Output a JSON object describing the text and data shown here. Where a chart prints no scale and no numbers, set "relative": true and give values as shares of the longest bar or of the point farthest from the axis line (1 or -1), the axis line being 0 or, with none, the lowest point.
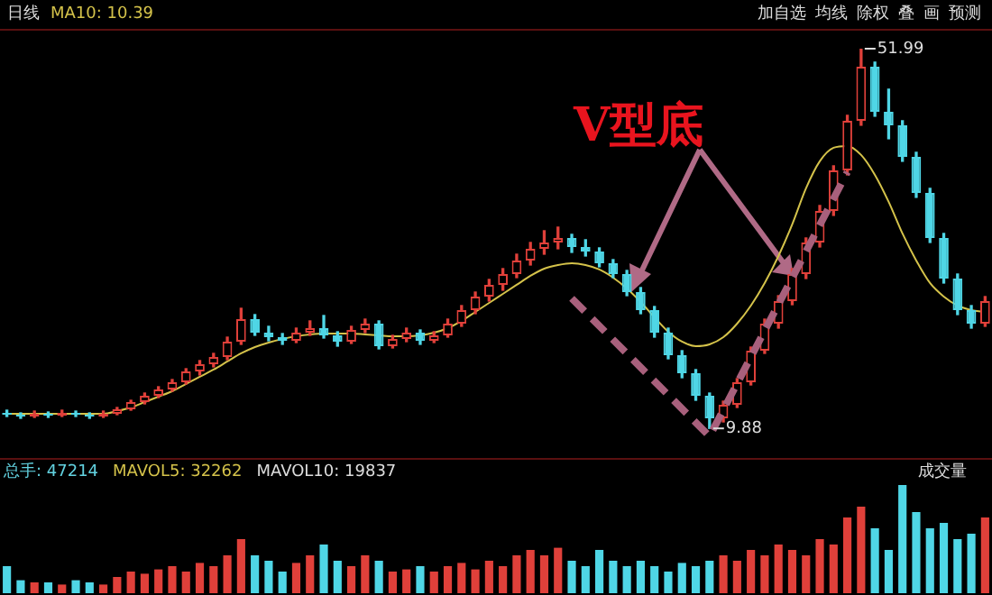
{
  "chart_data": [
    {
      "type": "candlestick",
      "tick_labels": false,
      "legend": "top left",
      "categories": [
        null,
        null,
        null,
        null,
        null,
        null,
        null,
        null,
        null,
        null,
        null,
        null,
        null,
        null,
        null,
        null,
        null,
        null,
        null,
        null,
        null,
        null,
        null,
        null,
        null,
        null,
        null,
        null,
        null,
        null,
        null,
        null,
        null,
        null,
        null,
        null,
        null,
        null,
        null,
        null,
        null,
        null,
        null,
        null,
        null,
        null,
        null,
        null,
        null,
        null,
        null,
        null,
        null,
        null,
        null,
        null,
        null,
        null,
        null,
        null,
        null,
        null,
        null,
        null,
        null,
        null,
        null,
        null,
        null,
        null,
        null,
        null
      ],
      "ohlc": [
        [
          11.6,
          11.9,
          11.2,
          11.4
        ],
        [
          11.4,
          11.6,
          11.0,
          11.2
        ],
        [
          11.2,
          11.8,
          11.1,
          11.5
        ],
        [
          11.5,
          11.7,
          11.1,
          11.3
        ],
        [
          11.3,
          11.9,
          11.2,
          11.6
        ],
        [
          11.6,
          11.8,
          11.2,
          11.4
        ],
        [
          11.4,
          11.6,
          11.0,
          11.2
        ],
        [
          11.2,
          11.8,
          11.1,
          11.5
        ],
        [
          11.5,
          12.2,
          11.4,
          12.0
        ],
        [
          12.0,
          13.0,
          11.9,
          12.8
        ],
        [
          12.8,
          13.8,
          12.6,
          13.5
        ],
        [
          13.5,
          14.5,
          13.3,
          14.2
        ],
        [
          14.2,
          15.3,
          14.0,
          15.0
        ],
        [
          15.0,
          16.5,
          14.8,
          16.2
        ],
        [
          16.2,
          17.4,
          15.8,
          17.0
        ],
        [
          17.0,
          18.2,
          16.7,
          17.8
        ],
        [
          17.8,
          20.0,
          17.5,
          19.5
        ],
        [
          19.5,
          23.2,
          19.2,
          22.0
        ],
        [
          22.0,
          22.5,
          20.2,
          20.5
        ],
        [
          20.5,
          21.2,
          19.6,
          20.0
        ],
        [
          20.0,
          20.4,
          19.2,
          19.6
        ],
        [
          19.6,
          21.0,
          19.4,
          20.5
        ],
        [
          20.5,
          21.8,
          20.2,
          21.0
        ],
        [
          21.0,
          22.4,
          19.9,
          20.2
        ],
        [
          20.2,
          20.6,
          19.0,
          19.5
        ],
        [
          19.5,
          21.2,
          19.3,
          20.8
        ],
        [
          20.8,
          22.0,
          20.5,
          21.5
        ],
        [
          21.5,
          21.8,
          18.7,
          19.0
        ],
        [
          19.0,
          20.2,
          18.8,
          19.8
        ],
        [
          19.8,
          21.0,
          19.5,
          20.5
        ],
        [
          20.5,
          20.8,
          19.2,
          19.6
        ],
        [
          19.6,
          20.6,
          19.4,
          20.2
        ],
        [
          20.2,
          22.0,
          20.0,
          21.5
        ],
        [
          21.5,
          23.5,
          21.2,
          23.0
        ],
        [
          23.0,
          25.0,
          22.6,
          24.5
        ],
        [
          24.5,
          26.4,
          24.0,
          25.8
        ],
        [
          25.8,
          27.6,
          25.2,
          27.0
        ],
        [
          27.0,
          29.2,
          26.6,
          28.5
        ],
        [
          28.5,
          30.5,
          28.0,
          29.8
        ],
        [
          29.8,
          31.8,
          29.2,
          30.5
        ],
        [
          30.5,
          32.2,
          29.8,
          31.0
        ],
        [
          31.0,
          31.4,
          29.4,
          30.0
        ],
        [
          30.0,
          30.8,
          29.0,
          29.5
        ],
        [
          29.5,
          29.9,
          27.8,
          28.2
        ],
        [
          28.2,
          28.6,
          26.6,
          27.0
        ],
        [
          27.0,
          27.4,
          24.6,
          25.0
        ],
        [
          25.0,
          25.5,
          22.6,
          23.0
        ],
        [
          23.0,
          23.4,
          20.0,
          20.5
        ],
        [
          20.5,
          21.0,
          17.6,
          18.0
        ],
        [
          18.0,
          18.5,
          15.5,
          16.0
        ],
        [
          16.0,
          16.4,
          13.0,
          13.5
        ],
        [
          13.5,
          13.8,
          9.88,
          11.0
        ],
        [
          11.0,
          12.9,
          10.6,
          12.5
        ],
        [
          12.5,
          15.4,
          12.2,
          15.0
        ],
        [
          15.0,
          18.9,
          14.7,
          18.5
        ],
        [
          18.5,
          22.0,
          18.2,
          21.5
        ],
        [
          21.5,
          24.6,
          21.0,
          24.0
        ],
        [
          24.0,
          27.6,
          23.6,
          27.0
        ],
        [
          27.0,
          31.0,
          26.5,
          30.5
        ],
        [
          30.5,
          34.6,
          30.0,
          34.0
        ],
        [
          34.0,
          39.0,
          33.5,
          38.5
        ],
        [
          38.5,
          44.6,
          38.0,
          44.0
        ],
        [
          44.0,
          51.99,
          43.5,
          50.0
        ],
        [
          50.0,
          50.5,
          44.5,
          45.0
        ],
        [
          45.0,
          47.5,
          42.0,
          43.5
        ],
        [
          43.5,
          44.0,
          39.5,
          40.0
        ],
        [
          40.0,
          40.5,
          35.5,
          36.0
        ],
        [
          36.0,
          36.5,
          30.5,
          31.0
        ],
        [
          31.0,
          31.5,
          26.0,
          26.5
        ],
        [
          26.5,
          27.0,
          22.5,
          23.0
        ],
        [
          23.0,
          23.5,
          21.0,
          21.5
        ],
        [
          21.5,
          24.5,
          21.2,
          24.0
        ]
      ],
      "colors": [
        "#4fd6e6",
        "#4fd6e6",
        "#e0403a",
        "#4fd6e6",
        "#e0403a",
        "#4fd6e6",
        "#4fd6e6",
        "#e0403a",
        "#e0403a",
        "#e0403a",
        "#e0403a",
        "#e0403a",
        "#e0403a",
        "#e0403a",
        "#e0403a",
        "#e0403a",
        "#e0403a",
        "#e0403a",
        "#4fd6e6",
        "#4fd6e6",
        "#4fd6e6",
        "#e0403a",
        "#e0403a",
        "#4fd6e6",
        "#4fd6e6",
        "#e0403a",
        "#e0403a",
        "#4fd6e6",
        "#e0403a",
        "#e0403a",
        "#4fd6e6",
        "#e0403a",
        "#e0403a",
        "#e0403a",
        "#e0403a",
        "#e0403a",
        "#e0403a",
        "#e0403a",
        "#e0403a",
        "#e0403a",
        "#e0403a",
        "#4fd6e6",
        "#4fd6e6",
        "#4fd6e6",
        "#4fd6e6",
        "#4fd6e6",
        "#4fd6e6",
        "#4fd6e6",
        "#4fd6e6",
        "#4fd6e6",
        "#4fd6e6",
        "#4fd6e6",
        "#e0403a",
        "#e0403a",
        "#e0403a",
        "#e0403a",
        "#e0403a",
        "#e0403a",
        "#e0403a",
        "#e0403a",
        "#e0403a",
        "#e0403a",
        "#e0403a",
        "#4fd6e6",
        "#4fd6e6",
        "#4fd6e6",
        "#4fd6e6",
        "#4fd6e6",
        "#4fd6e6",
        "#4fd6e6",
        "#4fd6e6",
        "#e0403a"
      ],
      "series": [
        {
          "type": "line",
          "name": "MA10: 10.39",
          "color": "#d4c24a",
          "values": [
            11.5,
            11.5,
            11.5,
            11.5,
            11.5,
            11.5,
            11.5,
            11.5,
            11.8,
            12.2,
            12.8,
            13.4,
            14.0,
            14.8,
            15.6,
            16.4,
            17.3,
            18.2,
            18.9,
            19.4,
            19.8,
            20.1,
            20.3,
            20.4,
            20.4,
            20.4,
            20.3,
            20.2,
            20.1,
            20.1,
            20.2,
            20.5,
            21.0,
            21.8,
            22.8,
            23.8,
            24.8,
            25.8,
            26.8,
            27.6,
            28.0,
            28.2,
            28.0,
            27.5,
            26.6,
            25.4,
            23.9,
            22.2,
            20.6,
            19.5,
            19.0,
            19.2,
            20.0,
            21.5,
            23.5,
            26.0,
            29.0,
            32.5,
            36.5,
            39.5,
            41.0,
            41.2,
            40.2,
            38.0,
            35.0,
            31.5,
            28.5,
            26.0,
            24.5,
            23.5,
            23.0,
            22.8
          ]
        },
        {
          "type": "line",
          "color": "#a8607c",
          "line_style": "dashed",
          "values": [
            null,
            null,
            null,
            null,
            null,
            null,
            null,
            null,
            null,
            null,
            null,
            null,
            null,
            null,
            null,
            null,
            null,
            null,
            null,
            null,
            null,
            null,
            null,
            null,
            null,
            null,
            null,
            null,
            null,
            null,
            null,
            null,
            null,
            null,
            null,
            null,
            null,
            null,
            null,
            null,
            null,
            24.3,
            null,
            null,
            null,
            null,
            null,
            null,
            null,
            null,
            null,
            9.0,
            null,
            null,
            null,
            null,
            null,
            null,
            null,
            null,
            null,
            38.3,
            null,
            null,
            null,
            null,
            null,
            null,
            null,
            null,
            null,
            null
          ]
        }
      ],
      "annotations": [
        "51.99",
        "9.88",
        "V型底",
        "日线",
        "加自选",
        "均线",
        "除权",
        "叠",
        "画",
        "预测"
      ]
    },
    {
      "type": "bar",
      "relative": true,
      "tick_labels": false,
      "categories": [
        null,
        null,
        null,
        null,
        null,
        null,
        null,
        null,
        null,
        null,
        null,
        null,
        null,
        null,
        null,
        null,
        null,
        null,
        null,
        null,
        null,
        null,
        null,
        null,
        null,
        null,
        null,
        null,
        null,
        null,
        null,
        null,
        null,
        null,
        null,
        null,
        null,
        null,
        null,
        null,
        null,
        null,
        null,
        null,
        null,
        null,
        null,
        null,
        null,
        null,
        null,
        null,
        null,
        null,
        null,
        null,
        null,
        null,
        null,
        null,
        null,
        null,
        null,
        null,
        null,
        null,
        null,
        null,
        null,
        null,
        null,
        null
      ],
      "values": [
        0.25,
        0.12,
        0.1,
        0.1,
        0.08,
        0.12,
        0.1,
        0.08,
        0.15,
        0.2,
        0.18,
        0.22,
        0.25,
        0.2,
        0.28,
        0.25,
        0.35,
        0.5,
        0.35,
        0.3,
        0.2,
        0.28,
        0.35,
        0.45,
        0.3,
        0.25,
        0.35,
        0.3,
        0.2,
        0.22,
        0.25,
        0.2,
        0.25,
        0.28,
        0.22,
        0.3,
        0.25,
        0.35,
        0.4,
        0.35,
        0.42,
        0.3,
        0.25,
        0.4,
        0.3,
        0.25,
        0.3,
        0.25,
        0.2,
        0.28,
        0.25,
        0.3,
        0.35,
        0.3,
        0.4,
        0.35,
        0.45,
        0.4,
        0.35,
        0.5,
        0.45,
        0.7,
        0.8,
        0.6,
        0.4,
        1.0,
        0.75,
        0.6,
        0.65,
        0.5,
        0.55,
        0.7
      ],
      "colors": [
        "#4fd6e6",
        "#4fd6e6",
        "#e0403a",
        "#4fd6e6",
        "#e0403a",
        "#4fd6e6",
        "#4fd6e6",
        "#e0403a",
        "#e0403a",
        "#e0403a",
        "#e0403a",
        "#e0403a",
        "#e0403a",
        "#e0403a",
        "#e0403a",
        "#e0403a",
        "#e0403a",
        "#e0403a",
        "#4fd6e6",
        "#4fd6e6",
        "#4fd6e6",
        "#e0403a",
        "#e0403a",
        "#4fd6e6",
        "#4fd6e6",
        "#e0403a",
        "#e0403a",
        "#4fd6e6",
        "#e0403a",
        "#e0403a",
        "#4fd6e6",
        "#e0403a",
        "#e0403a",
        "#e0403a",
        "#e0403a",
        "#e0403a",
        "#e0403a",
        "#e0403a",
        "#e0403a",
        "#e0403a",
        "#e0403a",
        "#4fd6e6",
        "#4fd6e6",
        "#4fd6e6",
        "#4fd6e6",
        "#4fd6e6",
        "#4fd6e6",
        "#4fd6e6",
        "#4fd6e6",
        "#4fd6e6",
        "#4fd6e6",
        "#4fd6e6",
        "#e0403a",
        "#e0403a",
        "#e0403a",
        "#e0403a",
        "#e0403a",
        "#e0403a",
        "#e0403a",
        "#e0403a",
        "#e0403a",
        "#e0403a",
        "#e0403a",
        "#4fd6e6",
        "#4fd6e6",
        "#4fd6e6",
        "#4fd6e6",
        "#4fd6e6",
        "#4fd6e6",
        "#4fd6e6",
        "#4fd6e6",
        "#e0403a"
      ],
      "annotations": [
        "总手: 47214",
        "MAVOL5: 32262",
        "MAVOL10: 19837",
        "成交量"
      ]
    }
  ]
}
